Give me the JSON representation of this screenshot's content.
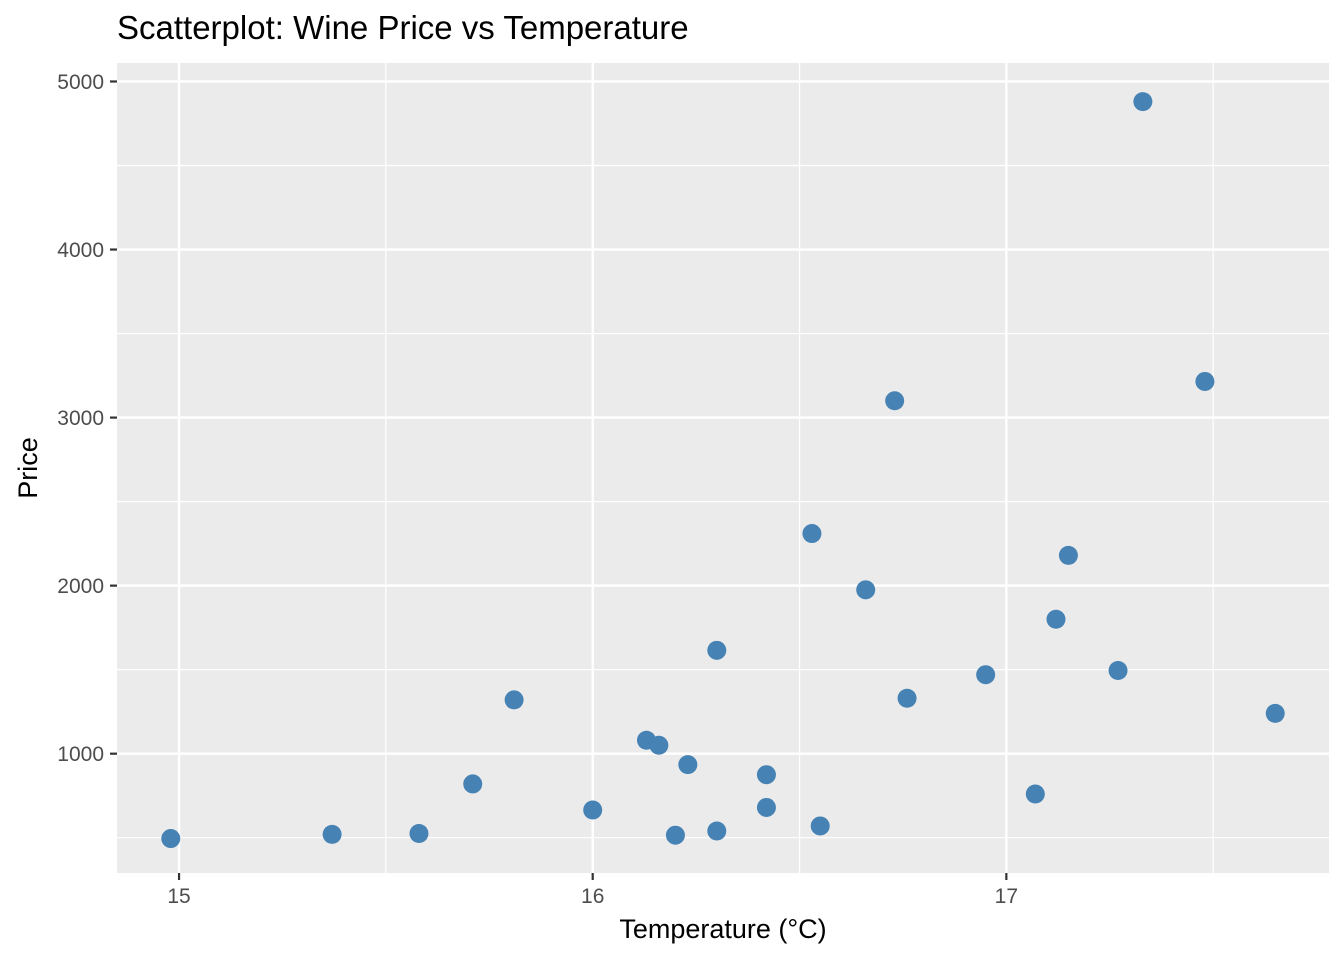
{
  "chart_data": {
    "type": "scatter",
    "title": "Scatterplot: Wine Price vs Temperature",
    "xlabel": "Temperature (°C)",
    "ylabel": "Price",
    "xlim": [
      14.85,
      17.78
    ],
    "ylim": [
      290,
      5110
    ],
    "x_ticks": [
      15,
      16,
      17
    ],
    "x_tick_labels": [
      "15",
      "16",
      "17"
    ],
    "x_minor_ticks": [
      15.5,
      16.5,
      17.5
    ],
    "y_ticks": [
      1000,
      2000,
      3000,
      4000,
      5000
    ],
    "y_tick_labels": [
      "1000",
      "2000",
      "3000",
      "4000",
      "5000"
    ],
    "y_minor_ticks": [
      500,
      1500,
      2500,
      3500,
      4500
    ],
    "grid": true,
    "legend": "none",
    "colors": {
      "panel": "#ebebeb",
      "point": "#4682b4"
    },
    "x": [
      14.98,
      15.37,
      15.58,
      15.71,
      15.81,
      16.0,
      16.13,
      16.16,
      16.2,
      16.23,
      16.3,
      16.3,
      16.42,
      16.42,
      16.53,
      16.55,
      16.66,
      16.73,
      16.76,
      16.95,
      17.07,
      17.12,
      17.15,
      17.27,
      17.33,
      17.48,
      17.65
    ],
    "y": [
      495,
      520,
      525,
      820,
      1320,
      665,
      1080,
      1050,
      515,
      935,
      1615,
      540,
      680,
      875,
      2310,
      570,
      1975,
      3100,
      1330,
      1470,
      760,
      1800,
      2180,
      1495,
      4880,
      3215,
      1240
    ]
  }
}
